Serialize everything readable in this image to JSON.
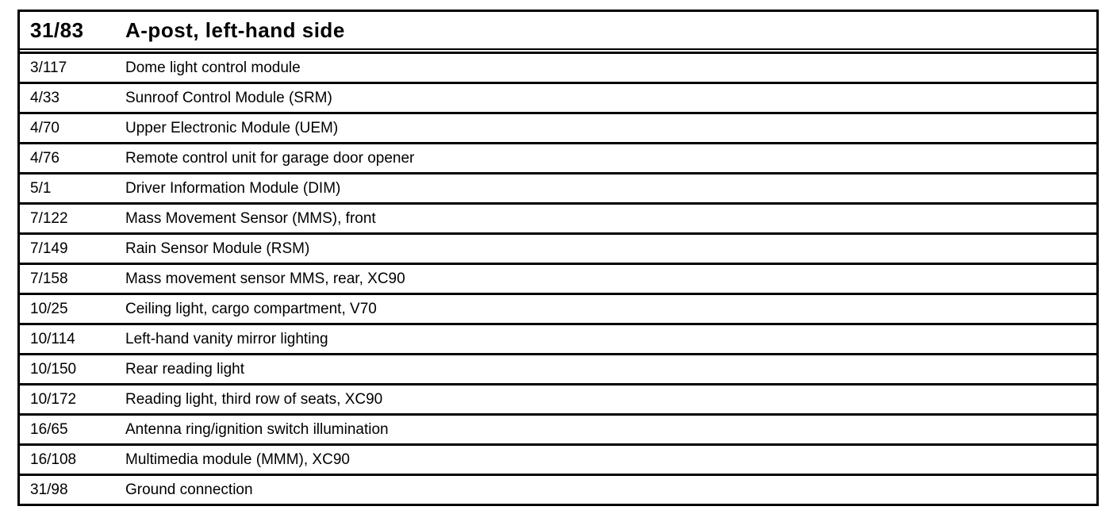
{
  "table": {
    "header": {
      "id": "31/83",
      "description": "A-post, left-hand side"
    },
    "rows": [
      {
        "id": "3/117",
        "description": "Dome light control module"
      },
      {
        "id": "4/33",
        "description": "Sunroof Control Module (SRM)"
      },
      {
        "id": "4/70",
        "description": "Upper Electronic Module (UEM)"
      },
      {
        "id": "4/76",
        "description": "Remote control unit for garage door opener"
      },
      {
        "id": "5/1",
        "description": "Driver Information Module (DIM)"
      },
      {
        "id": "7/122",
        "description": "Mass Movement Sensor (MMS), front"
      },
      {
        "id": "7/149",
        "description": "Rain Sensor Module (RSM)"
      },
      {
        "id": "7/158",
        "description": "Mass movement sensor MMS, rear, XC90"
      },
      {
        "id": "10/25",
        "description": "Ceiling light, cargo compartment, V70"
      },
      {
        "id": "10/114",
        "description": "Left-hand vanity mirror lighting"
      },
      {
        "id": "10/150",
        "description": "Rear reading light"
      },
      {
        "id": "10/172",
        "description": "Reading light, third row of seats, XC90"
      },
      {
        "id": "16/65",
        "description": "Antenna ring/ignition switch illumination"
      },
      {
        "id": "16/108",
        "description": "Multimedia module (MMM), XC90"
      },
      {
        "id": "31/98",
        "description": "Ground connection"
      }
    ],
    "colors": {
      "border": "#000000",
      "text": "#000000",
      "background": "#ffffff"
    }
  }
}
